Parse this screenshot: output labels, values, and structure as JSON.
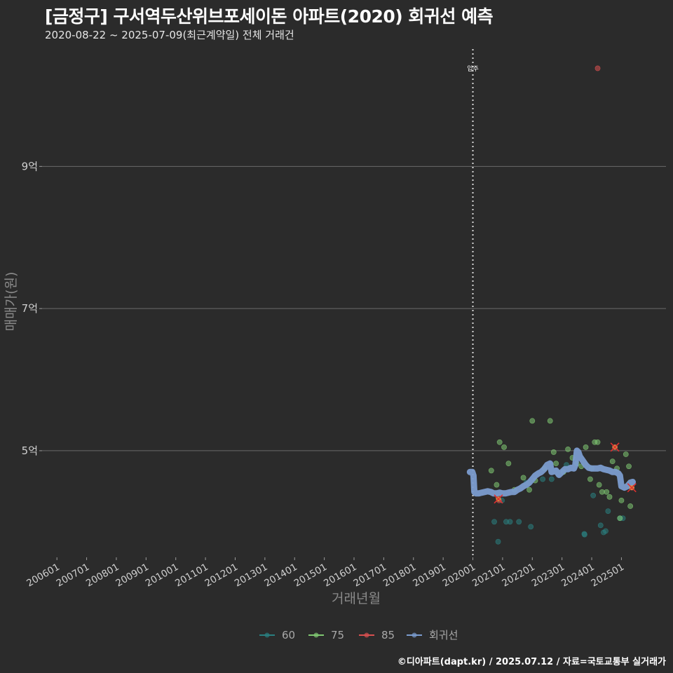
{
  "title": "[금정구] 구서역두산위브포세이돈 아파트(2020) 회귀선 예측",
  "subtitle": "2020-08-22 ~ 2025-07-09(최근계약일) 전체 거래건",
  "credit": "©디아파트(dapt.kr) / 2025.07.12 / 자료=국토교통부 실거래가",
  "chart_data": {
    "type": "scatter",
    "xlabel": "거래년월",
    "ylabel": "매매가(원)",
    "xlim": [
      2005.5,
      2026.5
    ],
    "ylim": [
      3.5,
      10.7
    ],
    "x_ticks": [
      "200601",
      "200701",
      "200801",
      "200901",
      "201001",
      "201101",
      "201201",
      "201301",
      "201401",
      "201501",
      "201601",
      "201701",
      "201801",
      "201901",
      "202001",
      "202101",
      "202201",
      "202301",
      "202401",
      "202501"
    ],
    "y_ticks": [
      {
        "value": 5,
        "label": "5억"
      },
      {
        "value": 7,
        "label": "7억"
      },
      {
        "value": 9,
        "label": "9억"
      }
    ],
    "vline": {
      "x": 2020.0,
      "label": "입주"
    },
    "legend": [
      {
        "name": "60",
        "color": "#2a7f80"
      },
      {
        "name": "75",
        "color": "#80c872"
      },
      {
        "name": "85",
        "color": "#d85050"
      },
      {
        "name": "회귀선",
        "color": "#7b9ccf"
      }
    ],
    "series": [
      {
        "name": "60",
        "color": "#2a7f80",
        "points": [
          [
            2020.72,
            4.0
          ],
          [
            2020.85,
            3.72
          ],
          [
            2020.98,
            4.3
          ],
          [
            2021.12,
            4.0
          ],
          [
            2021.25,
            4.0
          ],
          [
            2021.55,
            4.0
          ],
          [
            2021.95,
            3.93
          ],
          [
            2022.35,
            4.6
          ],
          [
            2023.75,
            3.83
          ],
          [
            2023.76,
            3.82
          ],
          [
            2024.05,
            4.37
          ],
          [
            2024.3,
            3.95
          ],
          [
            2024.55,
            4.15
          ],
          [
            2024.95,
            4.05
          ],
          [
            2025.05,
            4.05
          ],
          [
            2024.4,
            3.85
          ],
          [
            2024.47,
            3.87
          ],
          [
            2023.15,
            4.8
          ],
          [
            2021.8,
            4.55
          ],
          [
            2022.65,
            4.6
          ]
        ]
      },
      {
        "name": "75",
        "color": "#80c872",
        "points": [
          [
            2020.62,
            4.72
          ],
          [
            2020.8,
            4.52
          ],
          [
            2020.9,
            5.12
          ],
          [
            2021.05,
            5.05
          ],
          [
            2021.2,
            4.82
          ],
          [
            2021.7,
            4.62
          ],
          [
            2021.9,
            4.45
          ],
          [
            2022.0,
            5.42
          ],
          [
            2022.1,
            4.58
          ],
          [
            2022.6,
            5.42
          ],
          [
            2022.72,
            4.98
          ],
          [
            2022.8,
            4.82
          ],
          [
            2023.2,
            5.02
          ],
          [
            2023.35,
            4.9
          ],
          [
            2023.5,
            4.82
          ],
          [
            2023.65,
            4.78
          ],
          [
            2023.8,
            5.05
          ],
          [
            2023.95,
            4.6
          ],
          [
            2024.0,
            4.75
          ],
          [
            2024.1,
            5.12
          ],
          [
            2024.2,
            5.12
          ],
          [
            2024.25,
            4.52
          ],
          [
            2024.35,
            4.42
          ],
          [
            2024.5,
            4.42
          ],
          [
            2024.6,
            4.35
          ],
          [
            2024.7,
            4.85
          ],
          [
            2024.85,
            4.75
          ],
          [
            2024.95,
            4.05
          ],
          [
            2025.0,
            4.3
          ],
          [
            2025.15,
            4.95
          ],
          [
            2025.25,
            4.78
          ],
          [
            2025.3,
            4.22
          ],
          [
            2023.05,
            4.7
          ],
          [
            2022.4,
            4.75
          ],
          [
            2021.4,
            4.45
          ]
        ]
      },
      {
        "name": "85",
        "color": "#d85050",
        "points": [
          [
            2024.2,
            10.38
          ],
          [
            2020.85,
            4.35
          ],
          [
            2020.88,
            4.3
          ],
          [
            2024.78,
            5.05
          ],
          [
            2025.35,
            4.48
          ]
        ]
      },
      {
        "name": "회귀선",
        "color": "#7b9ccf",
        "points": [
          [
            2019.9,
            4.7
          ],
          [
            2019.98,
            4.7
          ],
          [
            2020.02,
            4.65
          ],
          [
            2020.05,
            4.42
          ],
          [
            2020.1,
            4.4
          ],
          [
            2020.2,
            4.4
          ],
          [
            2020.3,
            4.41
          ],
          [
            2020.4,
            4.42
          ],
          [
            2020.5,
            4.43
          ],
          [
            2020.6,
            4.42
          ],
          [
            2020.7,
            4.4
          ],
          [
            2020.8,
            4.4
          ],
          [
            2020.9,
            4.41
          ],
          [
            2021.0,
            4.4
          ],
          [
            2021.1,
            4.4
          ],
          [
            2021.2,
            4.41
          ],
          [
            2021.3,
            4.42
          ],
          [
            2021.4,
            4.42
          ],
          [
            2021.5,
            4.45
          ],
          [
            2021.6,
            4.47
          ],
          [
            2021.7,
            4.5
          ],
          [
            2021.8,
            4.52
          ],
          [
            2021.9,
            4.55
          ],
          [
            2022.0,
            4.6
          ],
          [
            2022.1,
            4.65
          ],
          [
            2022.2,
            4.68
          ],
          [
            2022.3,
            4.7
          ],
          [
            2022.4,
            4.74
          ],
          [
            2022.5,
            4.8
          ],
          [
            2022.6,
            4.82
          ],
          [
            2022.65,
            4.7
          ],
          [
            2022.8,
            4.72
          ],
          [
            2022.9,
            4.66
          ],
          [
            2023.0,
            4.7
          ],
          [
            2023.1,
            4.74
          ],
          [
            2023.2,
            4.74
          ],
          [
            2023.3,
            4.76
          ],
          [
            2023.4,
            4.75
          ],
          [
            2023.45,
            4.8
          ],
          [
            2023.5,
            5.0
          ],
          [
            2023.55,
            4.98
          ],
          [
            2023.6,
            4.92
          ],
          [
            2023.7,
            4.86
          ],
          [
            2023.8,
            4.8
          ],
          [
            2023.9,
            4.76
          ],
          [
            2024.0,
            4.75
          ],
          [
            2024.1,
            4.75
          ],
          [
            2024.2,
            4.75
          ],
          [
            2024.3,
            4.76
          ],
          [
            2024.4,
            4.74
          ],
          [
            2024.5,
            4.73
          ],
          [
            2024.6,
            4.72
          ],
          [
            2024.7,
            4.7
          ],
          [
            2024.8,
            4.7
          ],
          [
            2024.9,
            4.68
          ],
          [
            2024.95,
            4.65
          ],
          [
            2025.0,
            4.5
          ],
          [
            2025.1,
            4.48
          ],
          [
            2025.2,
            4.5
          ],
          [
            2025.3,
            4.55
          ],
          [
            2025.38,
            4.56
          ]
        ]
      }
    ],
    "highlighted": [
      [
        2020.86,
        4.32
      ],
      [
        2024.78,
        5.05
      ],
      [
        2025.35,
        4.48
      ]
    ]
  }
}
